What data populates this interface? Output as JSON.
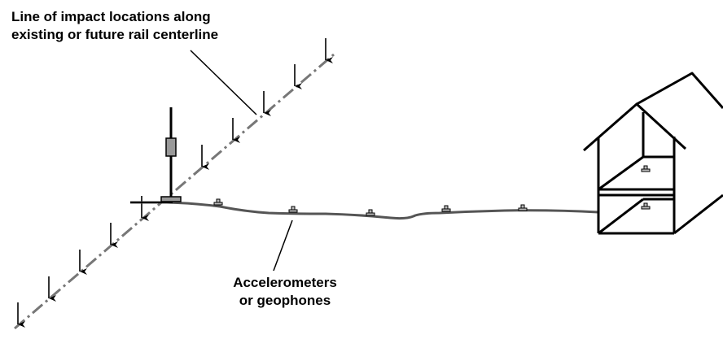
{
  "labels": {
    "impact_line": [
      "Line of impact locations along",
      "existing or future rail centerline"
    ],
    "sensors": [
      "Accelerometers",
      "or geophones"
    ]
  },
  "colors": {
    "ink": "#000000",
    "cable": "#555555",
    "centerline": "#777777",
    "sensor_fill": "#bbbbbb",
    "mast_fill": "#999999"
  }
}
